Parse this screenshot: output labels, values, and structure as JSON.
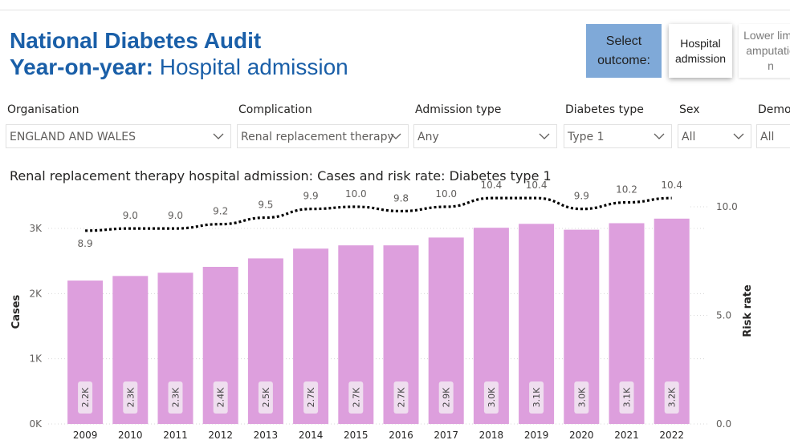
{
  "header": {
    "title_line1": "National Diabetes Audit",
    "title_line2_bold": "Year-on-year:",
    "title_line2_rest": "Hospital admission"
  },
  "outcome_selector": {
    "label": "Select outcome:",
    "options": [
      "Hospital admission",
      "Lower limb amputation"
    ],
    "selected": "Hospital admission"
  },
  "filters": [
    {
      "label": "Organisation",
      "value": "ENGLAND AND WALES"
    },
    {
      "label": "Complication",
      "value": "Renal replacement therapy"
    },
    {
      "label": "Admission type",
      "value": "Any"
    },
    {
      "label": "Diabetes type",
      "value": "Type 1"
    },
    {
      "label": "Sex",
      "value": "All"
    },
    {
      "label": "Demo",
      "value": "All"
    }
  ],
  "chart_data": {
    "type": "bar",
    "title": "Renal replacement therapy hospital admission: Cases and risk rate: Diabetes type 1",
    "xlabel": "",
    "ylabel": "Cases",
    "y2label": "Risk rate",
    "categories": [
      "2009",
      "2010",
      "2011",
      "2012",
      "2013",
      "2014",
      "2015",
      "2016",
      "2017",
      "2018",
      "2019",
      "2020",
      "2021",
      "2022"
    ],
    "ylim": [
      0,
      3500
    ],
    "yticks": [
      0,
      1000,
      2000,
      3000
    ],
    "ytick_labels": [
      "0K",
      "1K",
      "2K",
      "3K"
    ],
    "y2lim": [
      0,
      13
    ],
    "y2ticks": [
      0,
      5,
      10
    ],
    "y2tick_labels": [
      "0.0",
      "5.0",
      "10.0"
    ],
    "series": [
      {
        "name": "Cases",
        "type": "bar",
        "color": "#dd9fdd",
        "values": [
          2200,
          2270,
          2320,
          2410,
          2540,
          2690,
          2740,
          2740,
          2860,
          3010,
          3070,
          2980,
          3080,
          3150
        ],
        "labels": [
          "2.2K",
          "2.3K",
          "2.3K",
          "2.4K",
          "2.5K",
          "2.7K",
          "2.7K",
          "2.7K",
          "2.9K",
          "3.0K",
          "3.1K",
          "3.0K",
          "3.1K",
          "3.2K"
        ]
      },
      {
        "name": "Risk rate",
        "type": "line",
        "style": "dotted",
        "color": "#000000",
        "values": [
          8.9,
          9.0,
          9.0,
          9.2,
          9.5,
          9.9,
          10.0,
          9.8,
          10.0,
          10.4,
          10.4,
          9.9,
          10.2,
          10.4
        ],
        "labels": [
          "8.9",
          "9.0",
          "9.0",
          "9.2",
          "9.5",
          "9.9",
          "10.0",
          "9.8",
          "10.0",
          "10.4",
          "10.4",
          "9.9",
          "10.2",
          "10.4"
        ]
      }
    ]
  }
}
